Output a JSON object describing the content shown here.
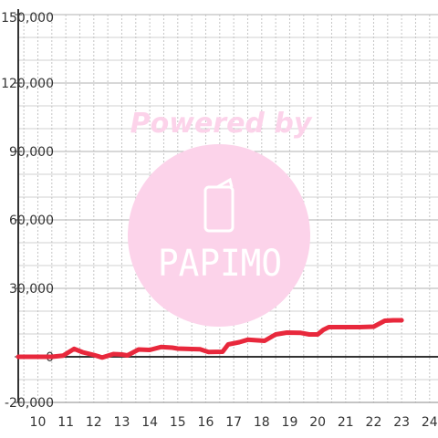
{
  "chart_data": {
    "type": "line",
    "title": "",
    "xlabel": "",
    "ylabel": "",
    "xlim": [
      9.3,
      24.3
    ],
    "ylim": [
      -20000,
      150000
    ],
    "x_ticks": [
      10,
      11,
      12,
      13,
      14,
      15,
      16,
      17,
      18,
      19,
      20,
      21,
      22,
      23,
      24
    ],
    "y_ticks": [
      {
        "value": -20000,
        "label": "-20,000"
      },
      {
        "value": 0,
        "label": "0"
      },
      {
        "value": 30000,
        "label": "30,000"
      },
      {
        "value": 60000,
        "label": "60,000"
      },
      {
        "value": 90000,
        "label": "90,000"
      },
      {
        "value": 120000,
        "label": "120,000"
      },
      {
        "value": 150000,
        "label": "150,000"
      }
    ],
    "grid": true,
    "series": [
      {
        "color": "#e8283c",
        "points": [
          [
            9.3,
            0
          ],
          [
            10.5,
            0
          ],
          [
            10.9,
            500
          ],
          [
            11.3,
            3500
          ],
          [
            11.6,
            2000
          ],
          [
            12.0,
            800
          ],
          [
            12.3,
            -300
          ],
          [
            12.7,
            1200
          ],
          [
            13.0,
            1000
          ],
          [
            13.2,
            600
          ],
          [
            13.6,
            3200
          ],
          [
            14.0,
            3000
          ],
          [
            14.4,
            4300
          ],
          [
            14.8,
            4000
          ],
          [
            15.0,
            3600
          ],
          [
            15.5,
            3400
          ],
          [
            15.8,
            3300
          ],
          [
            16.1,
            2100
          ],
          [
            16.6,
            2200
          ],
          [
            16.8,
            5400
          ],
          [
            17.2,
            6400
          ],
          [
            17.5,
            7500
          ],
          [
            18.1,
            7000
          ],
          [
            18.5,
            9800
          ],
          [
            18.9,
            10600
          ],
          [
            19.4,
            10500
          ],
          [
            19.7,
            9800
          ],
          [
            20.0,
            9800
          ],
          [
            20.2,
            11800
          ],
          [
            20.4,
            13000
          ],
          [
            21.0,
            13000
          ],
          [
            21.5,
            13000
          ],
          [
            22.0,
            13200
          ],
          [
            22.4,
            15800
          ],
          [
            22.7,
            16000
          ],
          [
            23.0,
            16000
          ]
        ]
      }
    ]
  },
  "watermark": {
    "text": "Powered by",
    "brand": "PAPIMO",
    "color": "#fcd3ea",
    "icon": "phone-icon"
  }
}
